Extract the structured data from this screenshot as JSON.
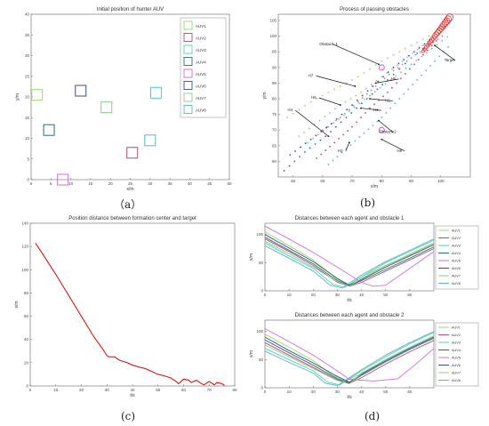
{
  "captions": {
    "a": "（a）",
    "b": "(b)",
    "c": "(c)",
    "d": "(d)"
  },
  "chart_data": [
    {
      "id": "a",
      "type": "scatter",
      "title": "Initial position of hunter AUV",
      "xlabel": "x/m",
      "ylabel": "y/m",
      "xlim": [
        0,
        50
      ],
      "ylim": [
        0,
        40
      ],
      "xticks": [
        0,
        5,
        10,
        15,
        20,
        25,
        30,
        35,
        40,
        45,
        50
      ],
      "yticks": [
        0,
        5,
        10,
        15,
        20,
        25,
        30,
        35,
        40
      ],
      "legend_position": "top-right",
      "series": [
        {
          "name": "AUV1",
          "color": "#9bd86d",
          "x": 1.5,
          "y": 20.5
        },
        {
          "name": "AUV2",
          "color": "#b04a7a",
          "x": 25.5,
          "y": 6.5
        },
        {
          "name": "AUV3",
          "color": "#4fd3b4",
          "x": 31.5,
          "y": 21.0
        },
        {
          "name": "AUV4",
          "color": "#2c6e73",
          "x": 4.5,
          "y": 12.0
        },
        {
          "name": "AUV5",
          "color": "#d36cd3",
          "x": 8.0,
          "y": 0.0
        },
        {
          "name": "AUV6",
          "color": "#3d4f7a",
          "x": 12.5,
          "y": 21.5
        },
        {
          "name": "AUV7",
          "color": "#88cc88",
          "x": 19.0,
          "y": 17.5
        },
        {
          "name": "AUV8",
          "color": "#5ab4c9",
          "x": 30.0,
          "y": 9.5
        }
      ]
    },
    {
      "id": "b",
      "type": "scatter",
      "title": "Process of passing obstacles",
      "xlabel": "x/m",
      "ylabel": "y/m",
      "xlim": [
        45,
        110
      ],
      "ylim": [
        55,
        107
      ],
      "xticks": [
        50,
        60,
        70,
        80,
        90,
        100
      ],
      "yticks": [
        60,
        65,
        70,
        75,
        80,
        85,
        90,
        95,
        100,
        105
      ],
      "annotations": [
        {
          "text": "Obstacle 1",
          "x": 62,
          "y": 97,
          "ax": 79,
          "ay": 91
        },
        {
          "text": "Target",
          "x": 103,
          "y": 92,
          "ax": 98,
          "ay": 97
        },
        {
          "text": "H5",
          "x": 84,
          "y": 86,
          "ax": 78,
          "ay": 85
        },
        {
          "text": "H7",
          "x": 56,
          "y": 87,
          "ax": 71,
          "ay": 84
        },
        {
          "text": "H6",
          "x": 57,
          "y": 80,
          "ax": 66,
          "ay": 78
        },
        {
          "text": "H2",
          "x": 82,
          "y": 79,
          "ax": 76,
          "ay": 80
        },
        {
          "text": "H1",
          "x": 78,
          "y": 76,
          "ax": 73,
          "ay": 77
        },
        {
          "text": "H4",
          "x": 49,
          "y": 76,
          "ax": 62,
          "ay": 68
        },
        {
          "text": "Obstacle2",
          "x": 82,
          "y": 69,
          "ax": 79,
          "ay": 73
        },
        {
          "text": "H8",
          "x": 86,
          "y": 63,
          "ax": 80,
          "ay": 67
        },
        {
          "text": "H3",
          "x": 66,
          "y": 63,
          "ax": 69,
          "ay": 66
        }
      ],
      "obstacles": [
        {
          "x": 80,
          "y": 90
        },
        {
          "x": 80,
          "y": 70
        }
      ],
      "target_path": {
        "x": [
          103,
          102.5,
          102,
          101.5,
          101,
          100.5,
          100,
          99.5,
          99,
          98.5,
          98,
          97.5,
          97,
          96.5,
          96,
          95.5,
          95,
          94.5,
          94
        ],
        "y": [
          106,
          105.4,
          104.8,
          104.2,
          103.6,
          103,
          102.4,
          101.8,
          101.2,
          100.6,
          100,
          99.4,
          98.8,
          98.2,
          97.6,
          97,
          96.4,
          95.8,
          95.2
        ]
      },
      "agent_tracks": [
        {
          "name": "H1",
          "color": "#9bd86d",
          "x": [
            48,
            56,
            64,
            72,
            80,
            88,
            96,
            103
          ],
          "y": [
            74,
            79,
            83,
            87,
            92,
            96,
            100,
            104
          ]
        },
        {
          "name": "H2",
          "color": "#b04a7a",
          "x": [
            58,
            64,
            70,
            76,
            82,
            88,
            94,
            100
          ],
          "y": [
            61,
            66,
            71,
            77,
            82,
            88,
            94,
            100
          ]
        },
        {
          "name": "H3",
          "color": "#4fd3b4",
          "x": [
            55,
            62,
            69,
            76,
            83,
            90,
            97,
            104
          ],
          "y": [
            66,
            71,
            76,
            81,
            86,
            91,
            96,
            101
          ]
        },
        {
          "name": "H4",
          "color": "#2c6e73",
          "x": [
            47,
            54,
            61,
            68,
            75,
            82,
            90,
            98
          ],
          "y": [
            57,
            63,
            68,
            74,
            80,
            86,
            93,
            99
          ]
        },
        {
          "name": "H5",
          "color": "#d36cd3",
          "x": [
            60,
            66,
            72,
            78,
            84,
            90,
            96,
            102
          ],
          "y": [
            70,
            74,
            79,
            84,
            89,
            93,
            97,
            101
          ]
        },
        {
          "name": "H6",
          "color": "#3d4f7a",
          "x": [
            49,
            56,
            63,
            70,
            77,
            84,
            91,
            98
          ],
          "y": [
            62,
            67,
            72,
            78,
            84,
            90,
            95,
            100
          ]
        },
        {
          "name": "H7",
          "color": "#88cc88",
          "x": [
            52,
            59,
            66,
            73,
            80,
            87,
            94,
            101
          ],
          "y": [
            68,
            73,
            78,
            82,
            87,
            92,
            97,
            102
          ]
        },
        {
          "name": "H8",
          "color": "#5ab4c9",
          "x": [
            62,
            68,
            74,
            80,
            86,
            92,
            98,
            104
          ],
          "y": [
            59,
            64,
            69,
            74,
            80,
            86,
            92,
            98
          ]
        }
      ]
    },
    {
      "id": "c",
      "type": "line",
      "title": "Position distance between formation center and target",
      "xlabel": "t/s",
      "ylabel": "x/m",
      "xlim": [
        0,
        80
      ],
      "ylim": [
        0,
        140
      ],
      "xticks": [
        0,
        10,
        20,
        30,
        40,
        50,
        60,
        70,
        80
      ],
      "yticks": [
        0,
        20,
        40,
        60,
        80,
        100,
        120,
        140
      ],
      "series": [
        {
          "color": "#e00000",
          "x": [
            2,
            5,
            10,
            15,
            20,
            25,
            28,
            30,
            31,
            33,
            35,
            38,
            40,
            43,
            45,
            48,
            50,
            52,
            55,
            57,
            58,
            60,
            62,
            63,
            65,
            67,
            68,
            70,
            72,
            73,
            75,
            76
          ],
          "y": [
            123,
            113,
            96,
            78,
            60,
            42,
            33,
            26,
            25,
            25,
            22,
            20,
            18,
            16,
            15,
            12,
            10,
            9,
            7,
            4,
            2,
            6,
            5,
            3,
            5,
            2,
            1,
            4,
            1,
            3,
            2,
            0.5
          ]
        }
      ]
    },
    {
      "id": "d1",
      "type": "line",
      "title": "Distances between each agent and obstacle 1",
      "xlabel": "t/s",
      "ylabel": "x/m",
      "xlim": [
        0,
        70
      ],
      "ylim": [
        0,
        120
      ],
      "xticks": [
        0,
        10,
        20,
        30,
        40,
        50,
        60
      ],
      "yticks": [
        0,
        50,
        100
      ],
      "legend_position": "right",
      "series": [
        {
          "name": "AUV1",
          "color": "#9bd86d",
          "x": [
            0,
            10,
            20,
            30,
            35,
            40,
            50,
            60,
            70
          ],
          "y": [
            105,
            80,
            55,
            20,
            10,
            25,
            45,
            65,
            85
          ]
        },
        {
          "name": "AUV2",
          "color": "#b04a7a",
          "x": [
            0,
            10,
            20,
            30,
            35,
            40,
            50,
            60,
            70
          ],
          "y": [
            92,
            70,
            45,
            15,
            8,
            15,
            35,
            55,
            75
          ]
        },
        {
          "name": "AUV3",
          "color": "#4fd3b4",
          "x": [
            0,
            10,
            20,
            28,
            33,
            40,
            50,
            60,
            70
          ],
          "y": [
            85,
            62,
            40,
            12,
            6,
            25,
            50,
            70,
            90
          ]
        },
        {
          "name": "AUV4",
          "color": "#2c6e73",
          "x": [
            0,
            10,
            20,
            30,
            35,
            40,
            50,
            60,
            70
          ],
          "y": [
            95,
            72,
            48,
            18,
            9,
            18,
            38,
            58,
            78
          ]
        },
        {
          "name": "AUV5",
          "color": "#d36cd3",
          "x": [
            0,
            10,
            20,
            30,
            40,
            45,
            50,
            60,
            70
          ],
          "y": [
            115,
            92,
            68,
            42,
            15,
            8,
            10,
            40,
            70
          ]
        },
        {
          "name": "AUV6",
          "color": "#3d4f7a",
          "x": [
            0,
            10,
            20,
            30,
            35,
            40,
            50,
            60,
            70
          ],
          "y": [
            100,
            76,
            52,
            22,
            10,
            20,
            42,
            62,
            82
          ]
        },
        {
          "name": "AUV7",
          "color": "#88cc88",
          "x": [
            0,
            10,
            20,
            30,
            35,
            40,
            50,
            60,
            70
          ],
          "y": [
            88,
            66,
            42,
            16,
            8,
            22,
            44,
            64,
            84
          ]
        },
        {
          "name": "AUV8",
          "color": "#5ab4c9",
          "x": [
            0,
            10,
            20,
            27,
            32,
            40,
            50,
            60,
            70
          ],
          "y": [
            80,
            58,
            35,
            10,
            5,
            28,
            52,
            72,
            92
          ]
        }
      ]
    },
    {
      "id": "d2",
      "type": "line",
      "title": "Distances between each agent and obstacle 2",
      "xlabel": "t/s",
      "ylabel": "x/m",
      "xlim": [
        0,
        70
      ],
      "ylim": [
        0,
        120
      ],
      "xticks": [
        0,
        10,
        20,
        30,
        40,
        50,
        60
      ],
      "yticks": [
        0,
        50,
        100
      ],
      "legend_position": "right",
      "series": [
        {
          "name": "AUV1",
          "color": "#9bd86d",
          "x": [
            0,
            10,
            20,
            28,
            33,
            40,
            50,
            60,
            70
          ],
          "y": [
            95,
            72,
            48,
            22,
            12,
            25,
            50,
            72,
            92
          ]
        },
        {
          "name": "AUV2",
          "color": "#b04a7a",
          "x": [
            0,
            10,
            20,
            30,
            35,
            40,
            50,
            60,
            70
          ],
          "y": [
            80,
            58,
            36,
            14,
            8,
            18,
            42,
            64,
            84
          ]
        },
        {
          "name": "AUV3",
          "color": "#4fd3b4",
          "x": [
            0,
            10,
            20,
            26,
            31,
            40,
            50,
            60,
            70
          ],
          "y": [
            70,
            50,
            30,
            10,
            5,
            30,
            55,
            78,
            98
          ]
        },
        {
          "name": "AUV4",
          "color": "#2c6e73",
          "x": [
            0,
            10,
            20,
            30,
            35,
            40,
            50,
            60,
            70
          ],
          "y": [
            85,
            62,
            40,
            16,
            9,
            22,
            46,
            68,
            88
          ]
        },
        {
          "name": "AUV5",
          "color": "#d36cd3",
          "x": [
            0,
            10,
            20,
            30,
            35,
            45,
            55,
            62,
            70
          ],
          "y": [
            105,
            82,
            58,
            30,
            15,
            12,
            16,
            40,
            70
          ]
        },
        {
          "name": "AUV6",
          "color": "#3d4f7a",
          "x": [
            0,
            10,
            20,
            30,
            35,
            40,
            50,
            60,
            70
          ],
          "y": [
            90,
            66,
            44,
            20,
            10,
            24,
            48,
            70,
            90
          ]
        },
        {
          "name": "AUV7",
          "color": "#88cc88",
          "x": [
            0,
            10,
            20,
            30,
            35,
            40,
            50,
            60,
            70
          ],
          "y": [
            76,
            55,
            34,
            13,
            7,
            26,
            50,
            72,
            92
          ]
        },
        {
          "name": "AUV8",
          "color": "#5ab4c9",
          "x": [
            0,
            10,
            20,
            25,
            30,
            40,
            50,
            60,
            70
          ],
          "y": [
            65,
            45,
            26,
            8,
            4,
            32,
            58,
            80,
            100
          ]
        }
      ]
    }
  ]
}
